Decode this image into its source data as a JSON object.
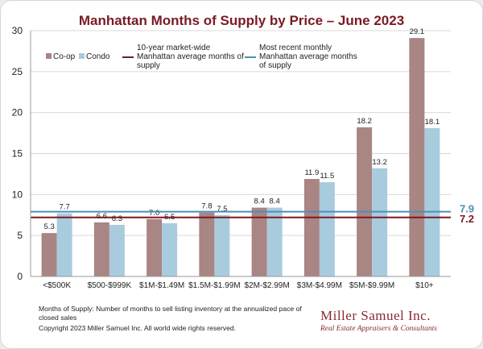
{
  "colors": {
    "coop": "#a98583",
    "condo": "#a9cbde",
    "market_wide": "#7b1a22",
    "recent": "#4e8fb8",
    "title": "#7b1a22",
    "axis": "#999999",
    "grid": "#d9d9d9"
  },
  "chart_data": {
    "type": "bar",
    "title": "Manhattan Months of Supply by Price – June 2023",
    "categories": [
      "<$500K",
      "$500-$999K",
      "$1M-$1.49M",
      "$1.5M-$1.99M",
      "$2M-$2.99M",
      "$3M-$4.99M",
      "$5M-$9.99M",
      "$10+"
    ],
    "series": [
      {
        "name": "Co-op",
        "values": [
          5.3,
          6.6,
          7.0,
          7.8,
          8.4,
          11.9,
          18.2,
          29.1
        ],
        "labels": [
          "5.3",
          "6.6",
          "7.0",
          "7.8",
          "8.4",
          "11.9",
          "18.2",
          "29.1"
        ]
      },
      {
        "name": "Condo",
        "values": [
          7.7,
          6.3,
          6.5,
          7.5,
          8.4,
          11.5,
          13.2,
          18.1
        ],
        "labels": [
          "7.7",
          "6.3",
          "6.5",
          "7.5",
          "8.4",
          "11.5",
          "13.2",
          "18.1"
        ]
      }
    ],
    "reference_lines": [
      {
        "name": "10-year market-wide Manhattan average months of supply",
        "value": 7.2,
        "label": "7.2"
      },
      {
        "name": "Most recent monthly Manhattan average months of supply",
        "value": 7.9,
        "label": "7.9"
      }
    ],
    "ylim": [
      0,
      30
    ],
    "yticks": [
      "0",
      "5",
      "10",
      "15",
      "20",
      "25",
      "30"
    ],
    "grid": "horizontal",
    "legend": "top-left",
    "xlabel": "",
    "ylabel": ""
  },
  "legend": {
    "coop": "Co-op",
    "condo": "Condo",
    "market_wide": [
      "10-year market-wide",
      "Manhattan average months of",
      "supply"
    ],
    "recent": [
      "Most recent monthly",
      "Manhattan average months",
      "of supply"
    ]
  },
  "footer": {
    "footnote": "Months of Supply: Number of months to sell listing inventory at the annualized pace of closed sales",
    "copyright": "Copyright 2023 Miller Samuel Inc.  All world wide rights reserved.",
    "brand_name": "Miller Samuel Inc.",
    "brand_tagline": "Real Estate Appraisers & Consultants"
  }
}
